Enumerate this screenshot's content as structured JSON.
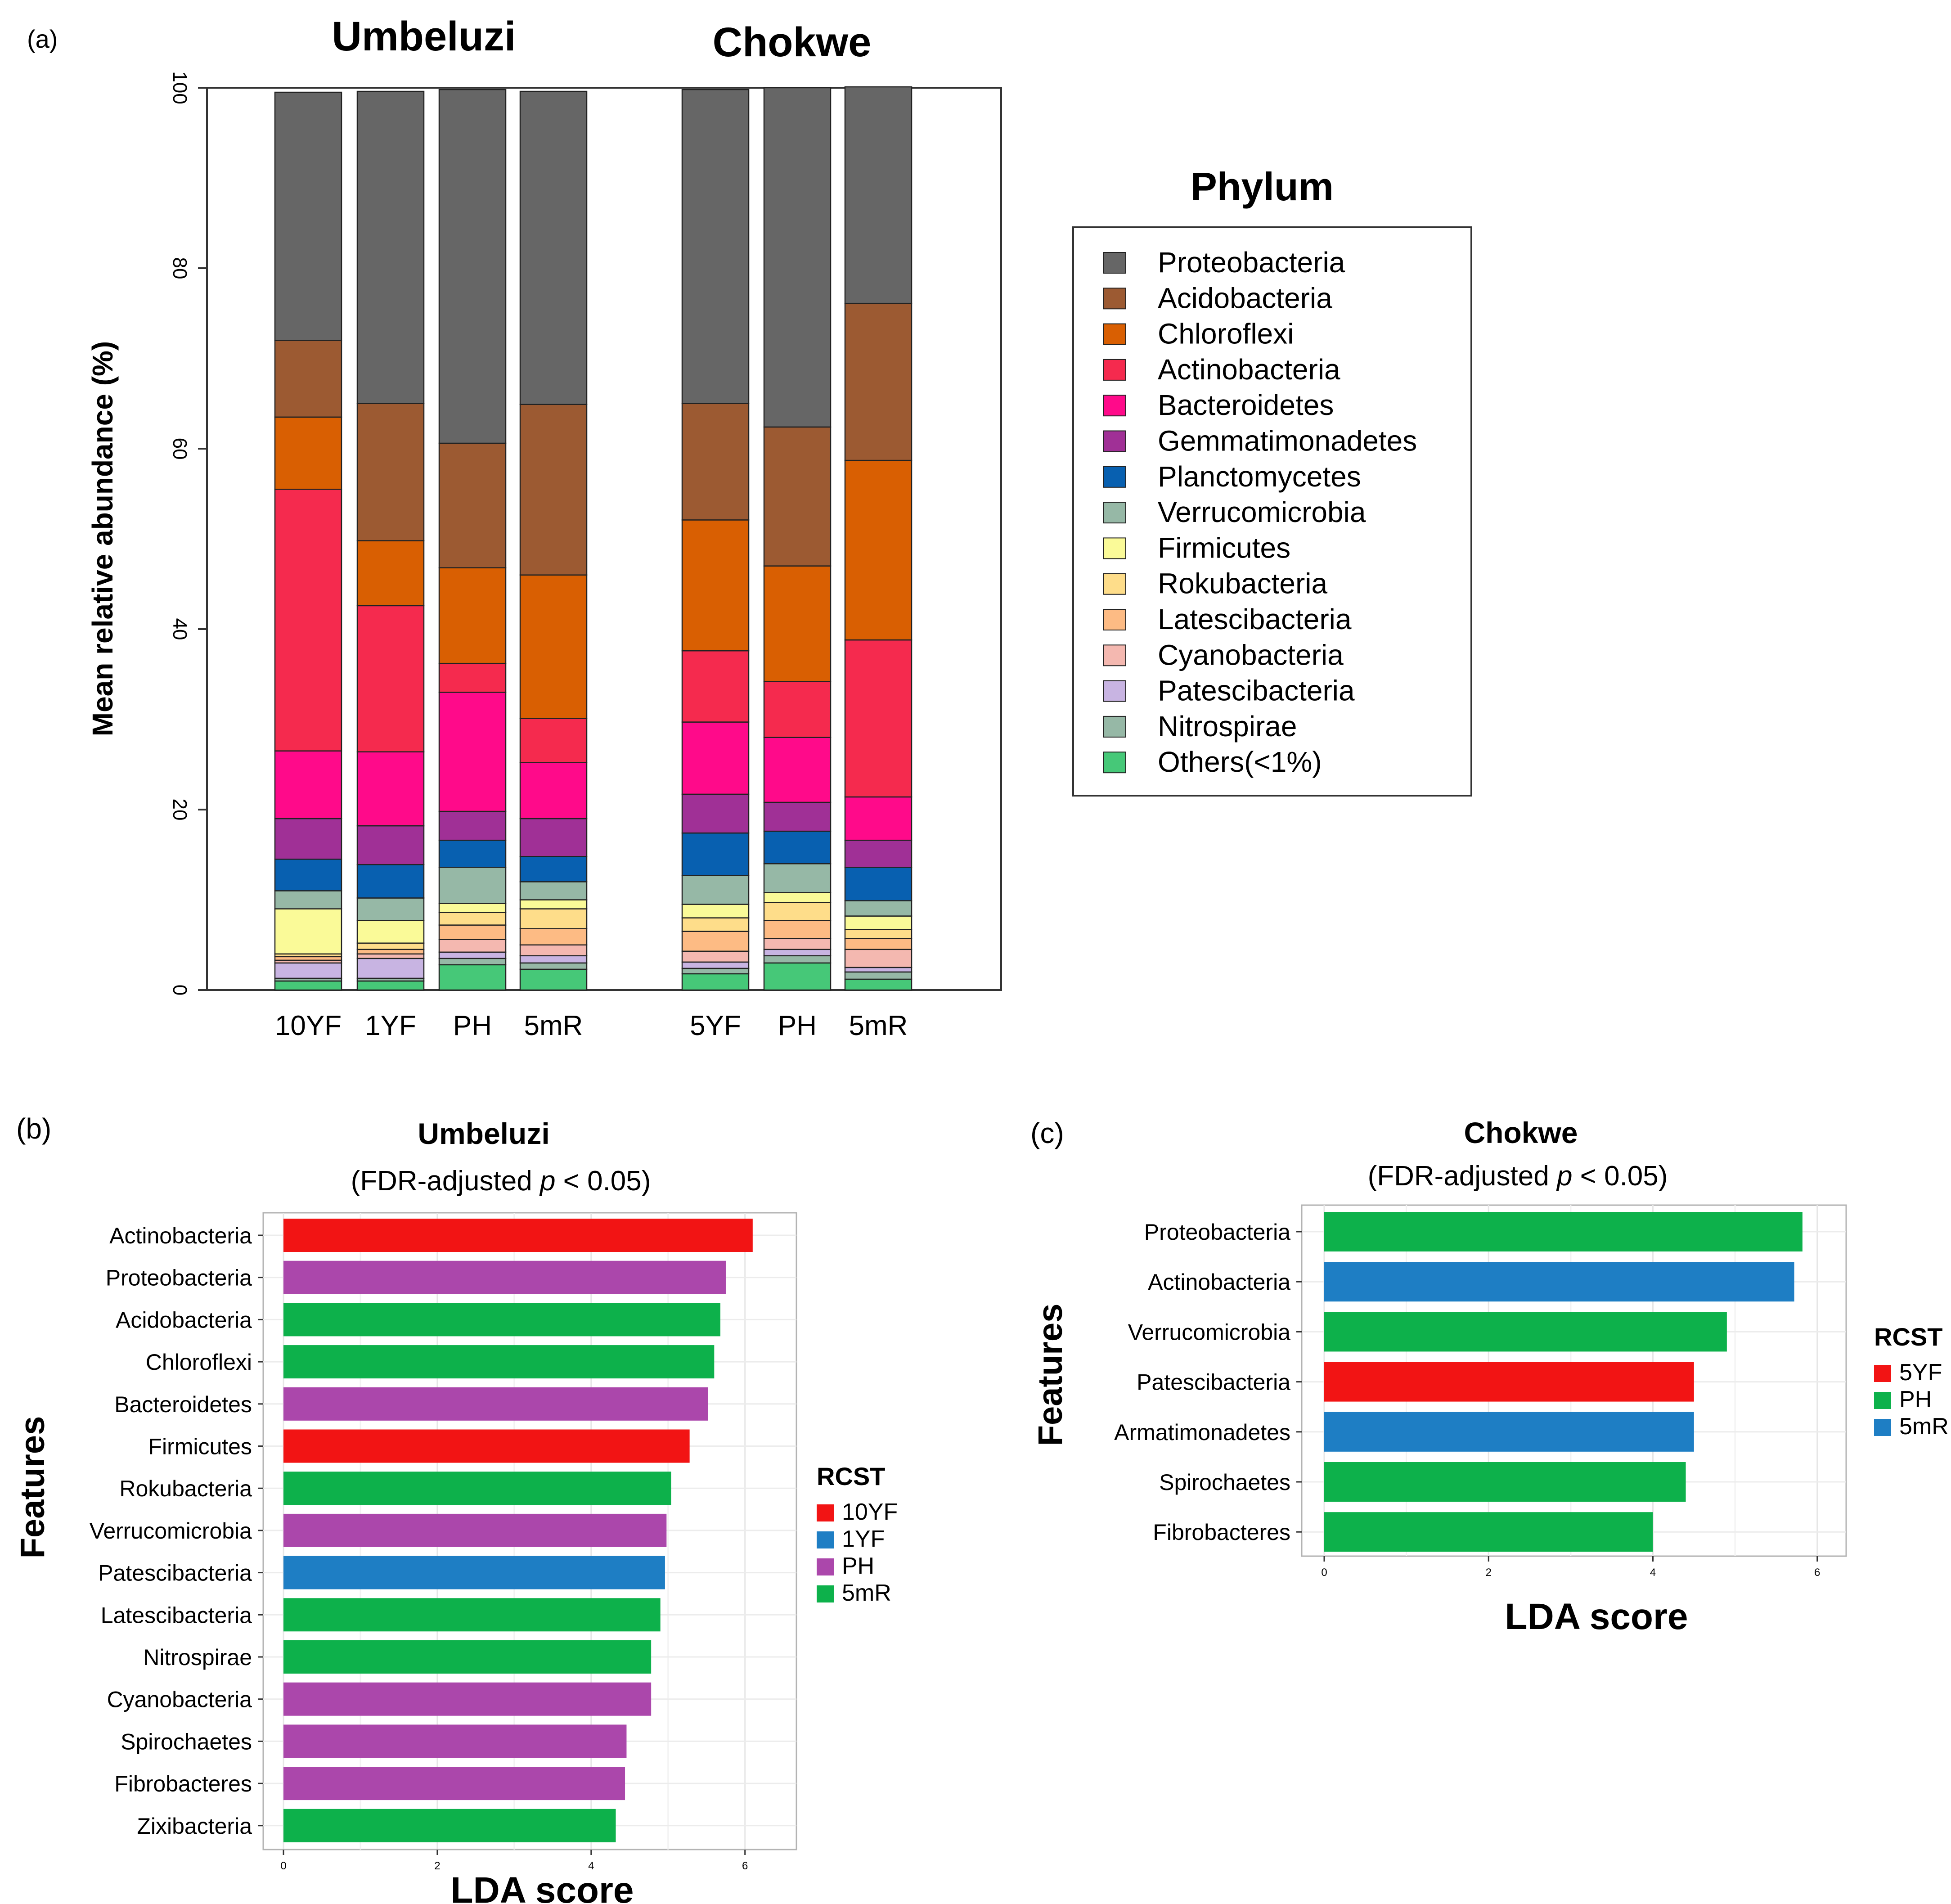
{
  "panel_labels": {
    "a": "(a)",
    "b": "(b)",
    "c": "(c)"
  },
  "legend_a": {
    "title": "Phylum",
    "items": [
      {
        "label": "Proteobacteria",
        "color": "#666666"
      },
      {
        "label": "Acidobacteria",
        "color": "#9c5a32"
      },
      {
        "label": "Chloroflexi",
        "color": "#d95f02"
      },
      {
        "label": "Actinobacteria",
        "color": "#f52a4e"
      },
      {
        "label": "Bacteroidetes",
        "color": "#ff0a8a"
      },
      {
        "label": "Gemmatimonadetes",
        "color": "#a03096"
      },
      {
        "label": "Planctomycetes",
        "color": "#0860b0"
      },
      {
        "label": "Verrucomicrobia",
        "color": "#96b8a6"
      },
      {
        "label": "Firmicutes",
        "color": "#fafa98"
      },
      {
        "label": "Rokubacteria",
        "color": "#fedd8a"
      },
      {
        "label": "Latescibacteria",
        "color": "#fdbb84"
      },
      {
        "label": "Cyanobacteria",
        "color": "#f4b8b0"
      },
      {
        "label": "Patescibacteria",
        "color": "#c8b4e2"
      },
      {
        "label": "Nitrospirae",
        "color": "#96b8a6"
      },
      {
        "label": "Others(<1%)",
        "color": "#46c878"
      }
    ]
  },
  "chart_data": [
    {
      "type": "bar",
      "stacked": true,
      "panel": "a",
      "ylabel": "Mean relative  abundance (%)",
      "ylim": [
        0,
        100
      ],
      "yticks": [
        "0",
        "20",
        "40",
        "60",
        "80",
        "100"
      ],
      "groups": [
        {
          "title": "Umbeluzi",
          "categories": [
            "10YF",
            "1YF",
            "PH",
            "5mR"
          ]
        },
        {
          "title": "Chokwe",
          "categories": [
            "5YF",
            "PH",
            "5mR"
          ]
        }
      ],
      "stack_order_bottom_to_top": [
        "Others(<1%)",
        "Nitrospirae",
        "Patescibacteria",
        "Cyanobacteria",
        "Latescibacteria",
        "Rokubacteria",
        "Firmicutes",
        "Verrucomicrobia",
        "Planctomycetes",
        "Gemmatimonadetes",
        "Bacteroidetes",
        "Actinobacteria",
        "Chloroflexi",
        "Acidobacteria",
        "Proteobacteria"
      ],
      "bars": [
        {
          "values": [
            1.0,
            0.3,
            1.7,
            0.3,
            0.4,
            0.3,
            5.0,
            2.0,
            3.5,
            4.5,
            7.5,
            29.0,
            8.0,
            8.5,
            27.5
          ]
        },
        {
          "values": [
            1.0,
            0.3,
            2.2,
            0.5,
            0.5,
            0.7,
            2.5,
            2.5,
            3.7,
            4.3,
            8.2,
            16.2,
            7.2,
            15.2,
            34.6
          ]
        },
        {
          "values": [
            2.8,
            0.7,
            0.7,
            1.4,
            1.6,
            1.4,
            1.0,
            4.0,
            3.0,
            3.2,
            13.2,
            3.2,
            10.6,
            13.8,
            39.2
          ]
        },
        {
          "values": [
            2.3,
            0.7,
            0.8,
            1.2,
            1.8,
            2.2,
            1.0,
            2.0,
            2.8,
            4.2,
            6.2,
            4.9,
            15.9,
            18.9,
            34.7
          ]
        },
        {
          "values": [
            1.8,
            0.6,
            0.7,
            1.2,
            2.2,
            1.5,
            1.5,
            3.2,
            4.7,
            4.3,
            8.0,
            7.9,
            14.5,
            12.9,
            34.8
          ]
        },
        {
          "values": [
            3.0,
            0.8,
            0.7,
            1.2,
            2.0,
            2.0,
            1.1,
            3.2,
            3.6,
            3.2,
            7.2,
            6.2,
            12.8,
            15.4,
            37.6
          ]
        },
        {
          "values": [
            1.2,
            0.8,
            0.5,
            2.0,
            1.2,
            1.0,
            1.5,
            1.7,
            3.7,
            3.0,
            4.8,
            17.4,
            19.9,
            17.4,
            24.0
          ]
        }
      ]
    },
    {
      "type": "bar",
      "orientation": "horizontal",
      "panel": "b",
      "title": "Umbeluzi",
      "subtitle": {
        "pre": "(FDR-adjusted ",
        "p": "p",
        "post": " < 0.05)"
      },
      "xlabel": "LDA score",
      "ylabel": "Features",
      "xlim": [
        0,
        6.3
      ],
      "xticks": [
        "0",
        "2",
        "4",
        "6"
      ],
      "legend": {
        "title": "RCST",
        "items": [
          {
            "label": "10YF",
            "color": "#f21414"
          },
          {
            "label": "1YF",
            "color": "#1e7ec4"
          },
          {
            "label": "PH",
            "color": "#ab47ab"
          },
          {
            "label": "5mR",
            "color": "#0db14b"
          }
        ]
      },
      "bars": [
        {
          "feature": "Actinobacteria",
          "value": 6.1,
          "group": "10YF"
        },
        {
          "feature": "Proteobacteria",
          "value": 5.75,
          "group": "PH"
        },
        {
          "feature": "Acidobacteria",
          "value": 5.68,
          "group": "5mR"
        },
        {
          "feature": "Chloroflexi",
          "value": 5.6,
          "group": "5mR"
        },
        {
          "feature": "Bacteroidetes",
          "value": 5.52,
          "group": "PH"
        },
        {
          "feature": "Firmicutes",
          "value": 5.28,
          "group": "10YF"
        },
        {
          "feature": "Rokubacteria",
          "value": 5.04,
          "group": "5mR"
        },
        {
          "feature": "Verrucomicrobia",
          "value": 4.98,
          "group": "PH"
        },
        {
          "feature": "Patescibacteria",
          "value": 4.96,
          "group": "1YF"
        },
        {
          "feature": "Latescibacteria",
          "value": 4.9,
          "group": "5mR"
        },
        {
          "feature": "Nitrospirae",
          "value": 4.78,
          "group": "5mR"
        },
        {
          "feature": "Cyanobacteria",
          "value": 4.78,
          "group": "PH"
        },
        {
          "feature": "Spirochaetes",
          "value": 4.46,
          "group": "PH"
        },
        {
          "feature": "Fibrobacteres",
          "value": 4.44,
          "group": "PH"
        },
        {
          "feature": "Zixibacteria",
          "value": 4.32,
          "group": "5mR"
        }
      ]
    },
    {
      "type": "bar",
      "orientation": "horizontal",
      "panel": "c",
      "title": "Chokwe",
      "subtitle": {
        "pre": "(FDR-adjusted ",
        "p": "p",
        "post": " < 0.05)"
      },
      "xlabel": "LDA score",
      "ylabel": "Features",
      "xlim": [
        0,
        6.1
      ],
      "xticks": [
        "0",
        "2",
        "4",
        "6"
      ],
      "legend": {
        "title": "RCST",
        "items": [
          {
            "label": "5YF",
            "color": "#f21414"
          },
          {
            "label": "PH",
            "color": "#0db14b"
          },
          {
            "label": "5mR",
            "color": "#1e7ec4"
          }
        ]
      },
      "bars": [
        {
          "feature": "Proteobacteria",
          "value": 5.82,
          "group": "PH"
        },
        {
          "feature": "Actinobacteria",
          "value": 5.72,
          "group": "5mR"
        },
        {
          "feature": "Verrucomicrobia",
          "value": 4.9,
          "group": "PH"
        },
        {
          "feature": "Patescibacteria",
          "value": 4.5,
          "group": "5YF"
        },
        {
          "feature": "Armatimonadetes",
          "value": 4.5,
          "group": "5mR"
        },
        {
          "feature": "Spirochaetes",
          "value": 4.4,
          "group": "PH"
        },
        {
          "feature": "Fibrobacteres",
          "value": 4.0,
          "group": "PH"
        }
      ]
    }
  ]
}
